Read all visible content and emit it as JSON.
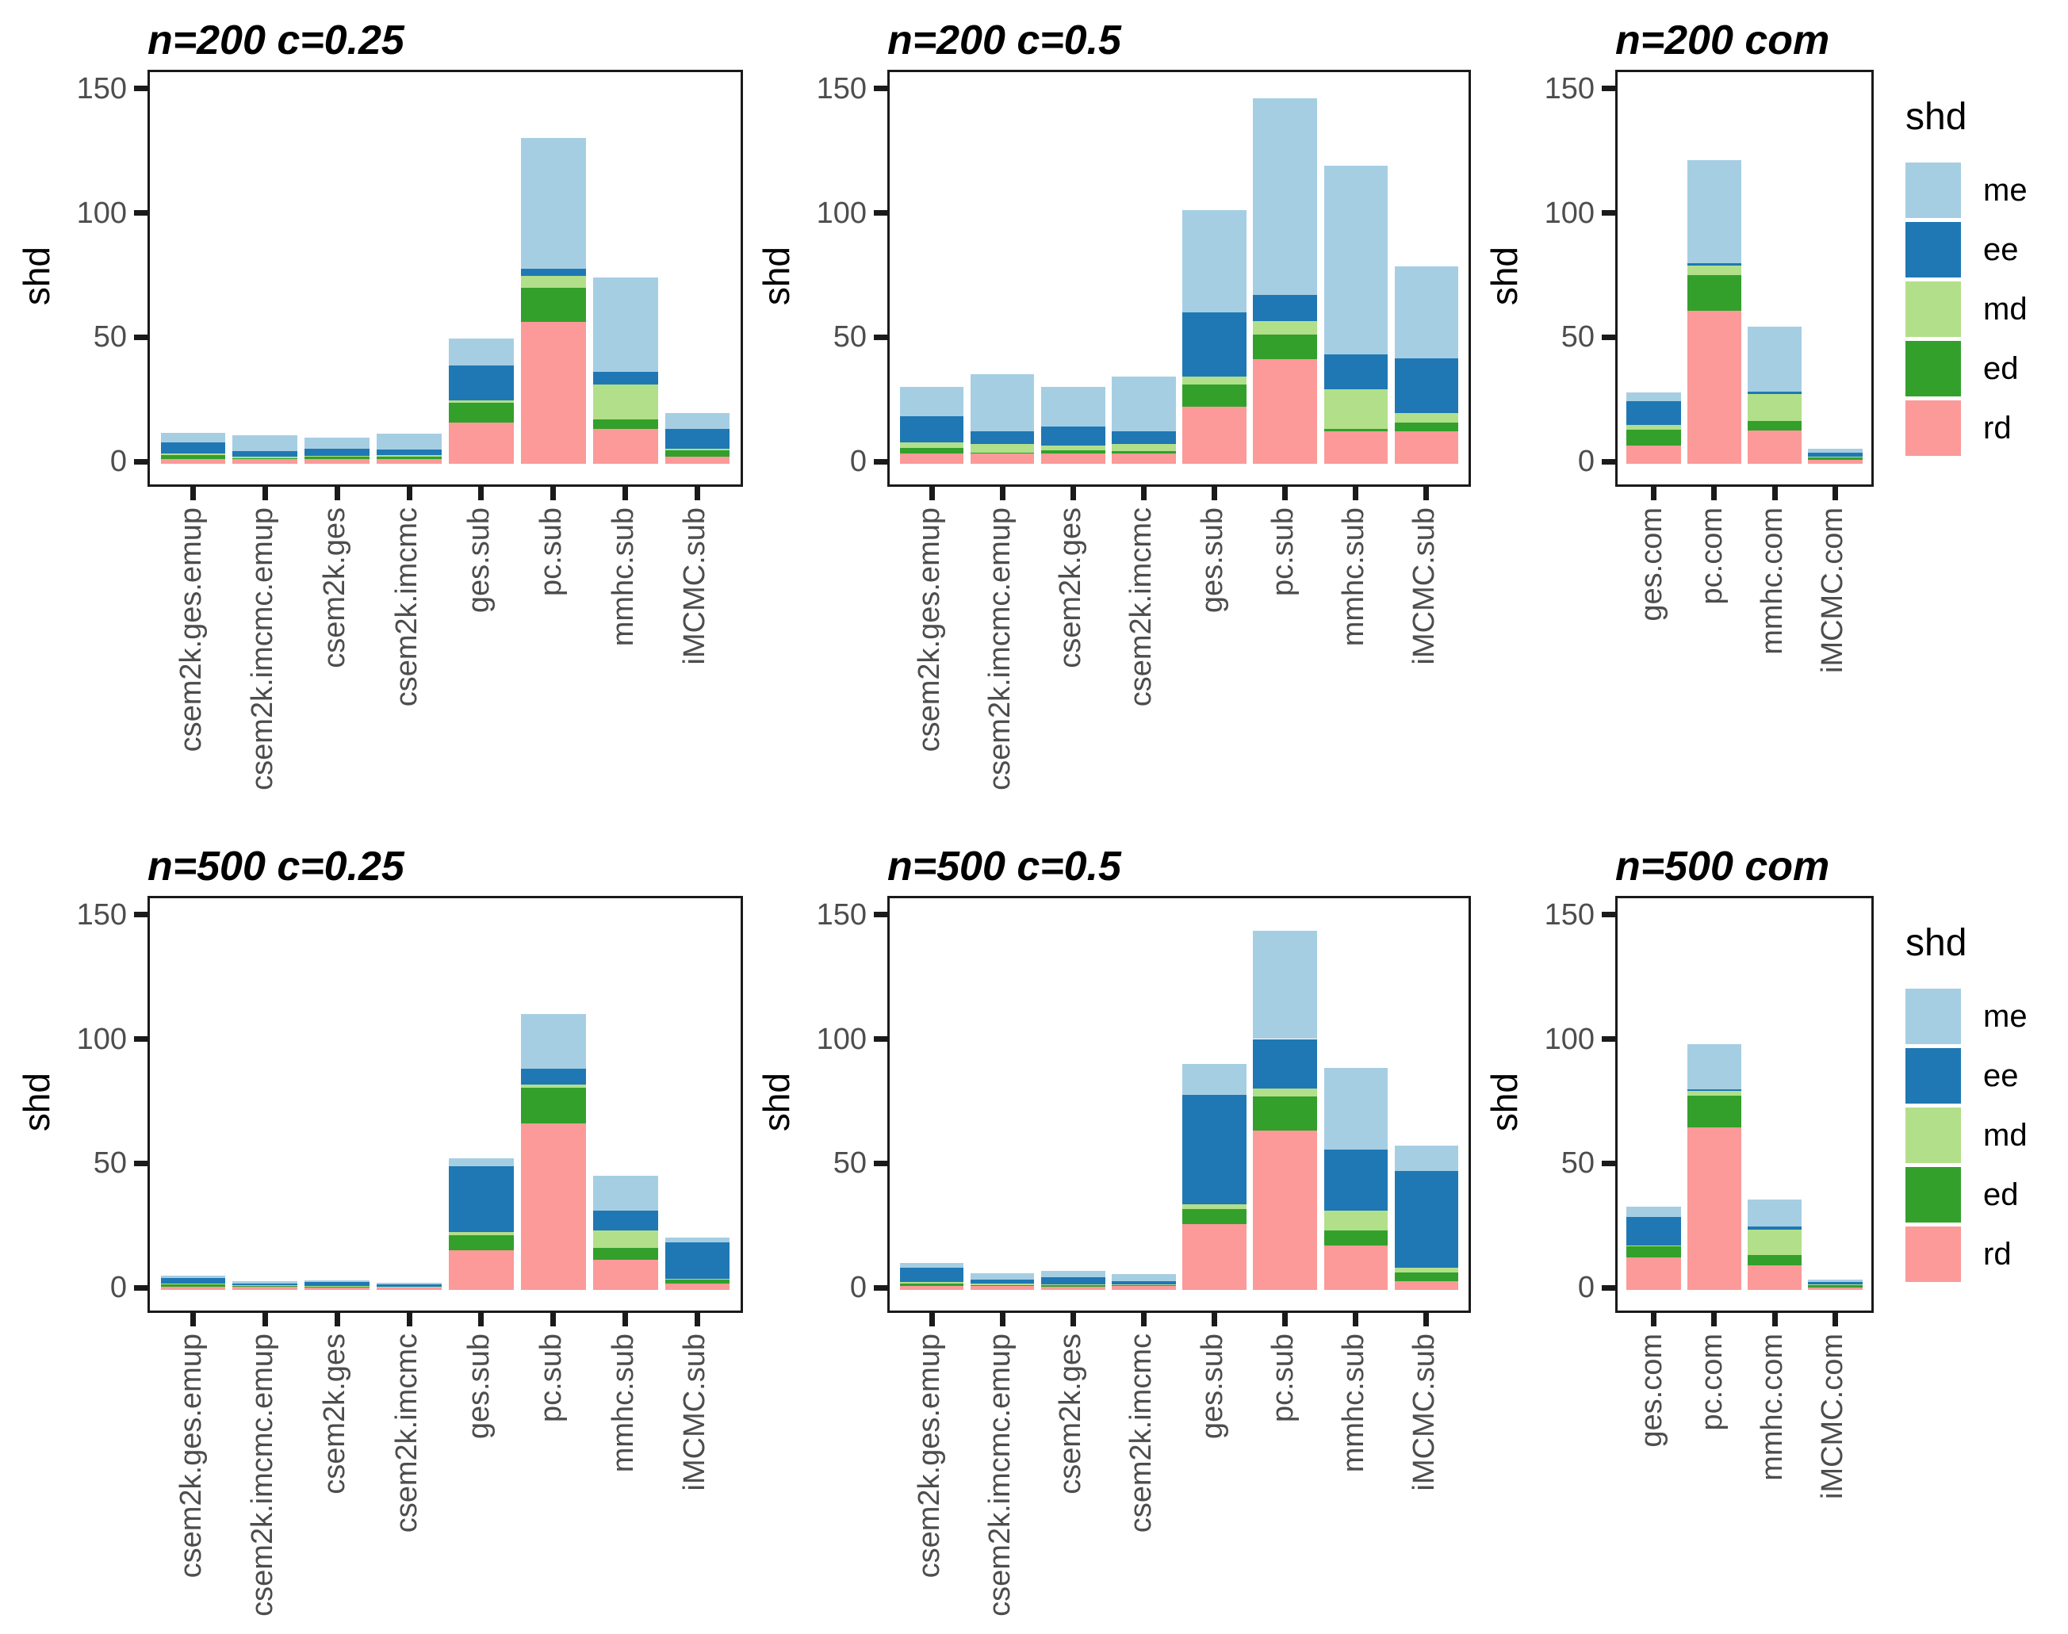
{
  "chart_data": {
    "type": "bar",
    "stacked": true,
    "grid": "off",
    "legend_position": "right-of-each-row",
    "legend_title": "shd",
    "legend_order_top_to_bottom": [
      "me",
      "ee",
      "md",
      "ed",
      "rd"
    ],
    "stack_order_bottom_to_top": [
      "rd",
      "ed",
      "md",
      "ee",
      "me"
    ],
    "series_colors": {
      "me": "#A6CEE3",
      "ee": "#1F78B4",
      "md": "#B2DF8A",
      "ed": "#33A02C",
      "rd": "#FB9A99"
    },
    "y_axis": {
      "label": "shd",
      "ticks": [
        0,
        50,
        100,
        150
      ],
      "range": [
        0,
        157
      ]
    },
    "charts": [
      {
        "title": "n=200 c=0.25",
        "categories": [
          "csem2k.ges.emup",
          "csem2k.imcmc.emup",
          "csem2k.ges",
          "csem2k.imcmc",
          "ges.sub",
          "pc.sub",
          "mmhc.sub",
          "iMCMC.sub"
        ],
        "series": [
          {
            "name": "rd",
            "values": [
              2,
              1.8,
              1.8,
              1.8,
              16.5,
              57,
              14,
              3
            ]
          },
          {
            "name": "ed",
            "values": [
              1.5,
              0.3,
              1.1,
              1.1,
              8,
              14,
              4,
              2.5
            ]
          },
          {
            "name": "md",
            "values": [
              0.5,
              0.8,
              0.2,
              0.7,
              1,
              4.5,
              14,
              0.5
            ]
          },
          {
            "name": "ee",
            "values": [
              4.5,
              2.3,
              3,
              2.3,
              14,
              3,
              5,
              8
            ]
          },
          {
            "name": "me",
            "values": [
              4,
              6.4,
              4.5,
              6.3,
              11,
              52.5,
              38,
              6.5
            ]
          }
        ]
      },
      {
        "title": "n=200 c=0.5",
        "categories": [
          "csem2k.ges.emup",
          "csem2k.imcmc.emup",
          "csem2k.ges",
          "csem2k.imcmc",
          "ges.sub",
          "pc.sub",
          "mmhc.sub",
          "iMCMC.sub"
        ],
        "series": [
          {
            "name": "rd",
            "values": [
              4,
              4,
              4,
              4,
              23,
              42,
              13,
              13
            ]
          },
          {
            "name": "ed",
            "values": [
              2.5,
              0.5,
              1.5,
              1,
              9,
              10,
              1,
              3.5
            ]
          },
          {
            "name": "md",
            "values": [
              2,
              3.5,
              2,
              3,
              3,
              5.5,
              16,
              4
            ]
          },
          {
            "name": "ee",
            "values": [
              10.5,
              5,
              7.5,
              5,
              26,
              10.5,
              14,
              22
            ]
          },
          {
            "name": "me",
            "values": [
              12,
              23,
              16,
              22,
              41,
              79,
              76,
              37
            ]
          }
        ]
      },
      {
        "title": "n=200 com",
        "categories": [
          "ges.com",
          "pc.com",
          "mmhc.com",
          "iMCMC.com"
        ],
        "series": [
          {
            "name": "rd",
            "values": [
              7.5,
              61.5,
              13.5,
              1.5
            ]
          },
          {
            "name": "ed",
            "values": [
              6.3,
              14.3,
              3.6,
              1
            ]
          },
          {
            "name": "md",
            "values": [
              2,
              4,
              11,
              0.5
            ]
          },
          {
            "name": "ee",
            "values": [
              9.3,
              1,
              1,
              1.5
            ]
          },
          {
            "name": "me",
            "values": [
              3.5,
              41.5,
              26,
              1.5
            ]
          }
        ]
      },
      {
        "title": "n=500 c=0.25",
        "categories": [
          "csem2k.ges.emup",
          "csem2k.imcmc.emup",
          "csem2k.ges",
          "csem2k.imcmc",
          "ges.sub",
          "pc.sub",
          "mmhc.sub",
          "iMCMC.sub"
        ],
        "series": [
          {
            "name": "rd",
            "values": [
              1.4,
              1.3,
              0.9,
              0.9,
              16,
              67,
              12,
              2.5
            ]
          },
          {
            "name": "ed",
            "values": [
              0.8,
              0.3,
              0.6,
              0.3,
              6,
              14.5,
              5,
              1.5
            ]
          },
          {
            "name": "md",
            "values": [
              0.2,
              0.4,
              0.1,
              0.1,
              1.3,
              1,
              7,
              0.5
            ]
          },
          {
            "name": "ee",
            "values": [
              2.5,
              0.6,
              1.5,
              0.8,
              26.5,
              6.5,
              8,
              14.5
            ]
          },
          {
            "name": "me",
            "values": [
              1,
              1,
              0.6,
              0.9,
              3.2,
              22,
              14,
              2
            ]
          }
        ]
      },
      {
        "title": "n=500 c=0.5",
        "categories": [
          "csem2k.ges.emup",
          "csem2k.imcmc.emup",
          "csem2k.ges",
          "csem2k.imcmc",
          "ges.sub",
          "pc.sub",
          "mmhc.sub",
          "iMCMC.sub"
        ],
        "series": [
          {
            "name": "rd",
            "values": [
              1.6,
              1.5,
              1.3,
              1.5,
              26.5,
              64,
              18,
              3.5
            ]
          },
          {
            "name": "ed",
            "values": [
              1.1,
              0.3,
              0.6,
              0.4,
              6,
              14,
              6,
              3.5
            ]
          },
          {
            "name": "md",
            "values": [
              0.5,
              0.7,
              0.2,
              0.2,
              2,
              3,
              8,
              2
            ]
          },
          {
            "name": "ee",
            "values": [
              5.7,
              1.8,
              3,
              1.4,
              44,
              20,
              24.5,
              39
            ]
          },
          {
            "name": "me",
            "values": [
              2.1,
              2.5,
              2.7,
              2.9,
              12.5,
              43.5,
              33,
              10
            ]
          }
        ]
      },
      {
        "title": "n=500 com",
        "categories": [
          "ges.com",
          "pc.com",
          "mmhc.com",
          "iMCMC.com"
        ],
        "series": [
          {
            "name": "rd",
            "values": [
              13,
              65.5,
              10,
              1
            ]
          },
          {
            "name": "ed",
            "values": [
              4.6,
              12.8,
              4,
              1
            ]
          },
          {
            "name": "md",
            "values": [
              0.3,
              1.8,
              10.4,
              0.3
            ]
          },
          {
            "name": "ee",
            "values": [
              11.4,
              0.7,
              1.1,
              0.8
            ]
          },
          {
            "name": "me",
            "values": [
              4.3,
              18.1,
              11,
              0.9
            ]
          }
        ]
      }
    ]
  }
}
